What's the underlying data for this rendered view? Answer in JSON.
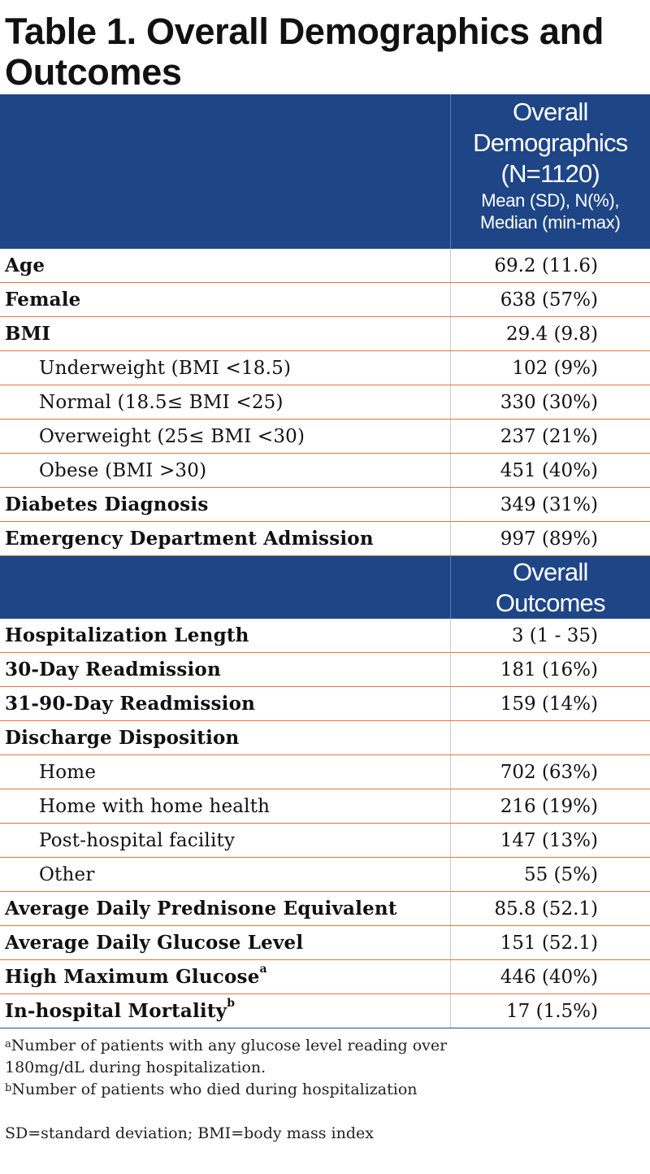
{
  "title": "Table 1. Overall Demographics and Outcomes",
  "header_demographics": {
    "line1": "Overall",
    "line2": "Demographics",
    "line3": "(N=1120)",
    "sub1": "Mean (SD), N(%),",
    "sub2": "Median (min-max)"
  },
  "demographics": [
    {
      "label": "Age",
      "value": "69.2 (11.6)"
    },
    {
      "label": "Female",
      "value": "638 (57%)"
    },
    {
      "label": "BMI",
      "value": "29.4 (9.8)"
    },
    {
      "label": "Underweight (BMI <18.5)",
      "value": "102 (9%)"
    },
    {
      "label": "Normal (18.5≤ BMI <25)",
      "value": "330 (30%)"
    },
    {
      "label": "Overweight (25≤ BMI <30)",
      "value": "237 (21%)"
    },
    {
      "label": "Obese (BMI >30)",
      "value": "451 (40%)"
    },
    {
      "label": "Diabetes Diagnosis",
      "value": "349 (31%)"
    },
    {
      "label": "Emergency Department Admission",
      "value": "997 (89%)"
    }
  ],
  "header_outcomes": {
    "line1": "Overall",
    "line2": "Outcomes"
  },
  "outcomes": [
    {
      "label": "Hospitalization Length",
      "value": "3 (1 - 35)"
    },
    {
      "label": "30-Day Readmission",
      "value": "181 (16%)"
    },
    {
      "label": "31-90-Day Readmission",
      "value": "159 (14%)"
    },
    {
      "label": "Discharge Disposition",
      "value": ""
    },
    {
      "label": "Home",
      "value": "702 (63%)"
    },
    {
      "label": "Home with home health",
      "value": "216 (19%)"
    },
    {
      "label": "Post-hospital facility",
      "value": "147 (13%)"
    },
    {
      "label": "Other",
      "value": "55 (5%)"
    },
    {
      "label": "Average Daily Prednisone Equivalent",
      "value": "85.8 (52.1)"
    },
    {
      "label": "Average Daily Glucose Level",
      "value": "151 (52.1)"
    },
    {
      "label": "High Maximum Glucose",
      "sup": "a",
      "value": "446 (40%)"
    },
    {
      "label": "In-hospital Mortality",
      "sup": "b",
      "value": "17 (1.5%)"
    }
  ],
  "footnotes": {
    "a_mark": "a",
    "a_line1": "Number of patients with any glucose level reading over",
    "a_line2": "180mg/dL during hospitalization.",
    "b_mark": "b",
    "b_line1": "Number of patients who died during hospitalization",
    "abbrev": "SD=standard deviation; BMI=body mass index"
  },
  "colors": {
    "header_bg": "#1e4586",
    "row_rule": "#e9743c"
  }
}
